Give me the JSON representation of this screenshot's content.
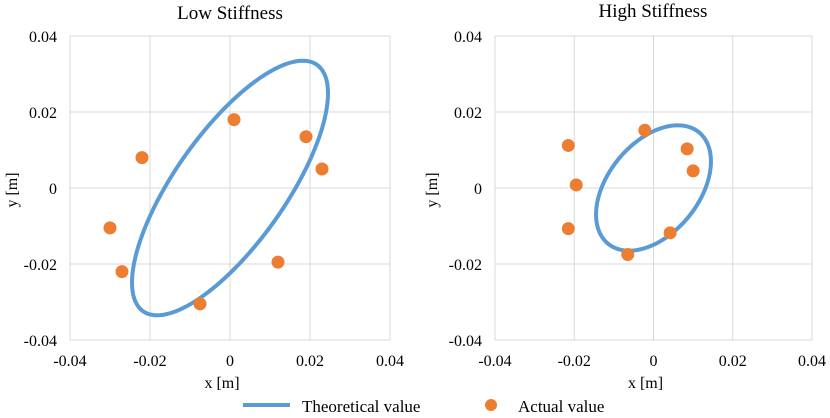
{
  "chart_data": [
    {
      "type": "scatter",
      "title": "Low Stiffness",
      "xlabel": "x [m]",
      "ylabel": "y [m]",
      "xlim": [
        -0.04,
        0.04
      ],
      "ylim": [
        -0.04,
        0.04
      ],
      "x_ticks": [
        -0.04,
        -0.02,
        0,
        0.02,
        0.04
      ],
      "x_tick_labels": [
        "-0.04",
        "-0.02",
        "0",
        "0.02",
        "0.04"
      ],
      "y_ticks": [
        0.04,
        0.02,
        0,
        -0.02,
        -0.04
      ],
      "y_tick_labels": [
        "0.04",
        "0.02",
        "0",
        "-0.02",
        "-0.04"
      ],
      "grid": true,
      "series": [
        {
          "name": "Theoretical value",
          "kind": "line",
          "color": "#5b9bd5",
          "ellipse": {
            "cx": 0.0,
            "cy": 0.0,
            "x_amp": 0.0245,
            "y_amp": 0.0335,
            "phase_deg": 42
          }
        },
        {
          "name": "Actual value",
          "kind": "scatter",
          "color": "#ed7d31",
          "points": [
            {
              "x": 0.001,
              "y": 0.018
            },
            {
              "x": 0.019,
              "y": 0.0135
            },
            {
              "x": 0.023,
              "y": 0.005
            },
            {
              "x": -0.022,
              "y": 0.008
            },
            {
              "x": -0.03,
              "y": -0.0105
            },
            {
              "x": -0.027,
              "y": -0.022
            },
            {
              "x": 0.012,
              "y": -0.0195
            },
            {
              "x": -0.0075,
              "y": -0.0305
            }
          ]
        }
      ]
    },
    {
      "type": "scatter",
      "title": "High Stiffness",
      "xlabel": "x [m]",
      "ylabel": "y [m]",
      "xlim": [
        -0.04,
        0.04
      ],
      "ylim": [
        -0.04,
        0.04
      ],
      "x_ticks": [
        -0.04,
        -0.02,
        0,
        0.02,
        0.04
      ],
      "x_tick_labels": [
        "-0.04",
        "-0.02",
        "0",
        "0.02",
        "0.04"
      ],
      "y_ticks": [
        0.04,
        0.02,
        0,
        -0.02,
        -0.04
      ],
      "y_tick_labels": [
        "0.04",
        "0.02",
        "0",
        "-0.02",
        "-0.04"
      ],
      "grid": true,
      "series": [
        {
          "name": "Theoretical value",
          "kind": "line",
          "color": "#5b9bd5",
          "ellipse": {
            "cx": 0.0,
            "cy": 0.0,
            "x_amp": 0.0145,
            "y_amp": 0.0165,
            "phase_deg": -65
          }
        },
        {
          "name": "Actual value",
          "kind": "scatter",
          "color": "#ed7d31",
          "points": [
            {
              "x": -0.0022,
              "y": 0.0152
            },
            {
              "x": 0.0085,
              "y": 0.0103
            },
            {
              "x": 0.01,
              "y": 0.0045
            },
            {
              "x": -0.0215,
              "y": 0.0112
            },
            {
              "x": -0.0195,
              "y": 0.0008
            },
            {
              "x": -0.0215,
              "y": -0.0107
            },
            {
              "x": -0.0065,
              "y": -0.0175
            },
            {
              "x": 0.0042,
              "y": -0.0118
            }
          ]
        }
      ]
    }
  ],
  "legend": {
    "position": "bottom",
    "line_label": "Theoretical value",
    "marker_label": "Actual value",
    "line_color": "#5b9bd5",
    "marker_color": "#ed7d31"
  }
}
